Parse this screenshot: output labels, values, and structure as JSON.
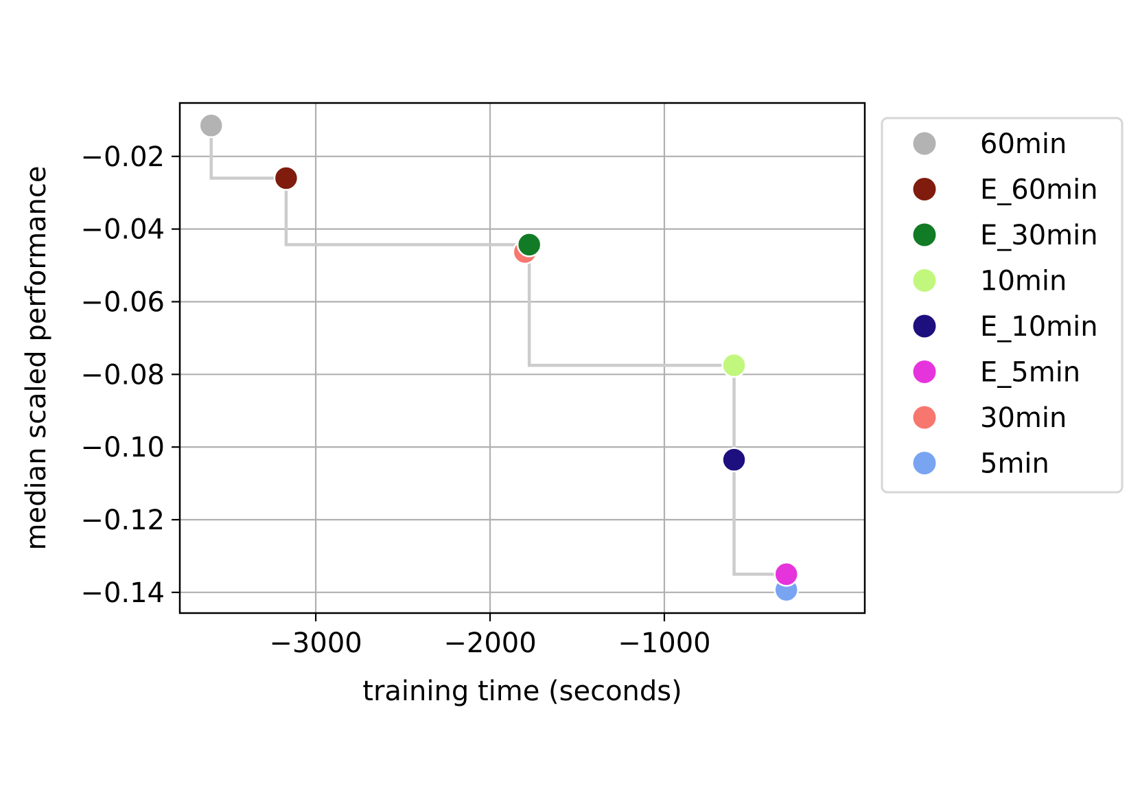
{
  "chart_data": {
    "type": "scatter",
    "xlabel": "training time (seconds)",
    "ylabel": "median scaled performance",
    "xlim": [
      -3780,
      150
    ],
    "ylim": [
      -0.1457,
      -0.0053
    ],
    "grid": true,
    "legend_placement": "outside-right",
    "x_ticks": [
      {
        "value": -3000,
        "label": "−3000"
      },
      {
        "value": -2000,
        "label": "−2000"
      },
      {
        "value": -1000,
        "label": "−1000"
      }
    ],
    "y_ticks": [
      {
        "value": -0.02,
        "label": "−0.02"
      },
      {
        "value": -0.04,
        "label": "−0.04"
      },
      {
        "value": -0.06,
        "label": "−0.06"
      },
      {
        "value": -0.08,
        "label": "−0.08"
      },
      {
        "value": -0.1,
        "label": "−0.10"
      },
      {
        "value": -0.12,
        "label": "−0.12"
      },
      {
        "value": -0.14,
        "label": "−0.14"
      }
    ],
    "frontier_color": "#cccccc",
    "frontier": [
      {
        "x": -3600,
        "y": -0.0115
      },
      {
        "x": -3170,
        "y": -0.026
      },
      {
        "x": -1775,
        "y": -0.0443
      },
      {
        "x": -600,
        "y": -0.0775
      },
      {
        "x": -600,
        "y": -0.1035
      },
      {
        "x": -300,
        "y": -0.135
      }
    ],
    "series": [
      {
        "name": "60min",
        "color": "#b3b3b3",
        "x": -3600,
        "y": -0.0115,
        "legend_faded": false
      },
      {
        "name": "E_60min",
        "color": "#7f1c0e",
        "x": -3170,
        "y": -0.026,
        "legend_faded": false
      },
      {
        "name": "E_30min",
        "color": "#127b25",
        "x": -1775,
        "y": -0.0443,
        "legend_faded": false
      },
      {
        "name": "10min",
        "color": "#c2f77e",
        "x": -600,
        "y": -0.0775,
        "legend_faded": false
      },
      {
        "name": "E_10min",
        "color": "#1e0f7e",
        "x": -600,
        "y": -0.1035,
        "legend_faded": false
      },
      {
        "name": "E_5min",
        "color": "#e634dd",
        "x": -300,
        "y": -0.135,
        "legend_faded": false
      },
      {
        "name": "30min",
        "color": "#f7776f",
        "x": -1800,
        "y": -0.0463,
        "legend_faded": true
      },
      {
        "name": "5min",
        "color": "#79a4f2",
        "x": -300,
        "y": -0.1393,
        "legend_faded": true
      }
    ]
  }
}
